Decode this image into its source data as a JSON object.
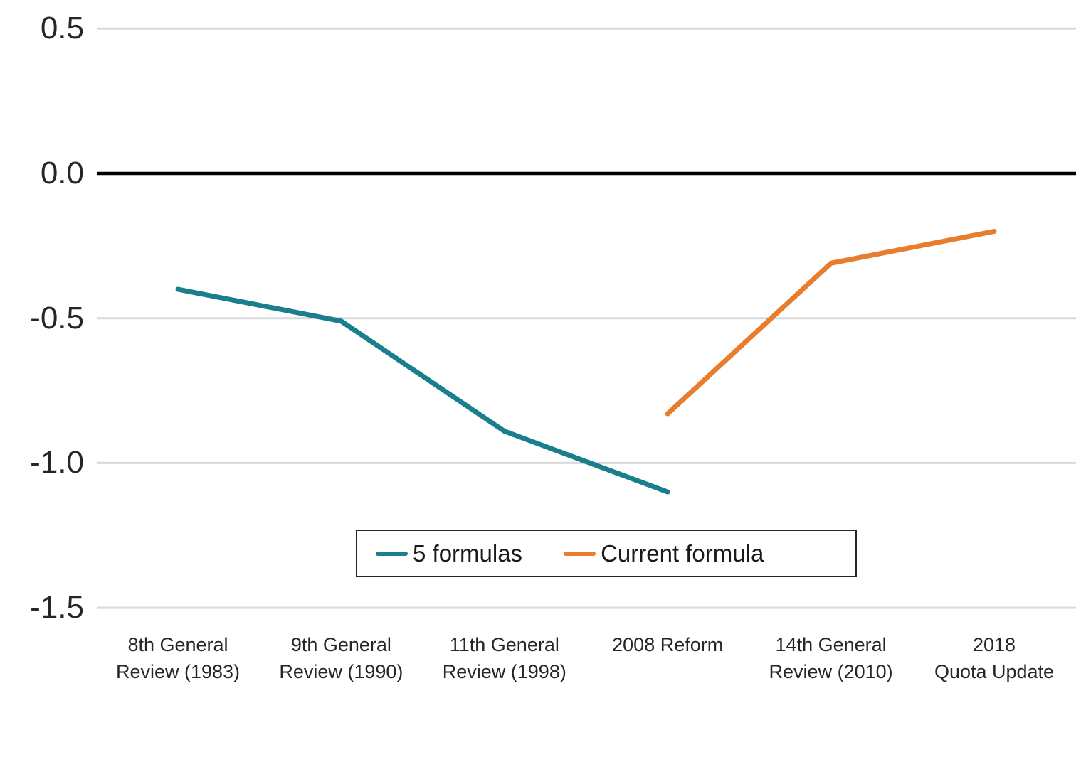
{
  "chart_data": {
    "type": "line",
    "title": "",
    "xlabel": "",
    "ylabel": "",
    "grid": true,
    "legend_position": "inside-bottom-center",
    "ylim": [
      -1.5,
      0.5
    ],
    "categories": [
      [
        "8th General",
        "Review (1983)"
      ],
      [
        "9th General",
        "Review (1990)"
      ],
      [
        "11th General",
        "Review (1998)"
      ],
      [
        "2008 Reform",
        ""
      ],
      [
        "14th General",
        "Review (2010)"
      ],
      [
        "2018",
        "Quota Update"
      ]
    ],
    "series": [
      {
        "name": "5 formulas",
        "color": "#1A7F8C",
        "values": [
          -0.4,
          -0.51,
          -0.89,
          -1.1,
          null,
          null
        ]
      },
      {
        "name": "Current formula",
        "color": "#E87D2B",
        "values": [
          null,
          null,
          null,
          -0.83,
          -0.31,
          -0.2
        ]
      }
    ],
    "yticks": [
      {
        "label": "0.5",
        "value": 0.5
      },
      {
        "label": "0.0",
        "value": 0.0
      },
      {
        "label": "-0.5",
        "value": -0.5
      },
      {
        "label": "-1.0",
        "value": -1.0
      },
      {
        "label": "-1.5",
        "value": -1.5
      }
    ],
    "colors": {
      "zero_axis": "#000000",
      "gridline": "#D9D9D9",
      "text": "#262626",
      "legend_border": "#262626"
    }
  }
}
